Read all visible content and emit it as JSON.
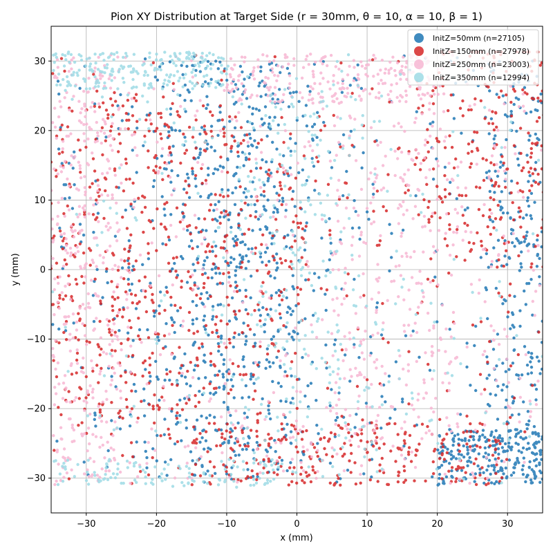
{
  "chart_data": {
    "type": "scatter",
    "title": "Pion XY Distribution at Target Side (r = 30mm, θ = 10, α = 10, β = 1)",
    "xlabel": "x (mm)",
    "ylabel": "y (mm)",
    "xlim": [
      -35,
      35
    ],
    "ylim": [
      -35,
      35
    ],
    "x_ticks": [
      -30,
      -20,
      -10,
      0,
      10,
      20,
      30
    ],
    "y_ticks": [
      -30,
      -20,
      -10,
      0,
      10,
      20,
      30
    ],
    "x_tick_labels": [
      "−30",
      "−20",
      "−10",
      "0",
      "10",
      "20",
      "30"
    ],
    "y_tick_labels": [
      "−30",
      "−20",
      "−10",
      "0",
      "10",
      "20",
      "30"
    ],
    "grid": true,
    "legend_position": "top-right",
    "series": [
      {
        "name": "InitZ=50mm (n=27105)",
        "color": "#1f77b4",
        "n": 27105
      },
      {
        "name": "InitZ=150mm (n=27978)",
        "color": "#d62728",
        "n": 27978
      },
      {
        "name": "InitZ=250mm (n=23003)",
        "color": "#f7b6d2",
        "n": 23003
      },
      {
        "name": "InitZ=350mm (n=12994)",
        "color": "#9edae5",
        "n": 12994
      }
    ]
  }
}
